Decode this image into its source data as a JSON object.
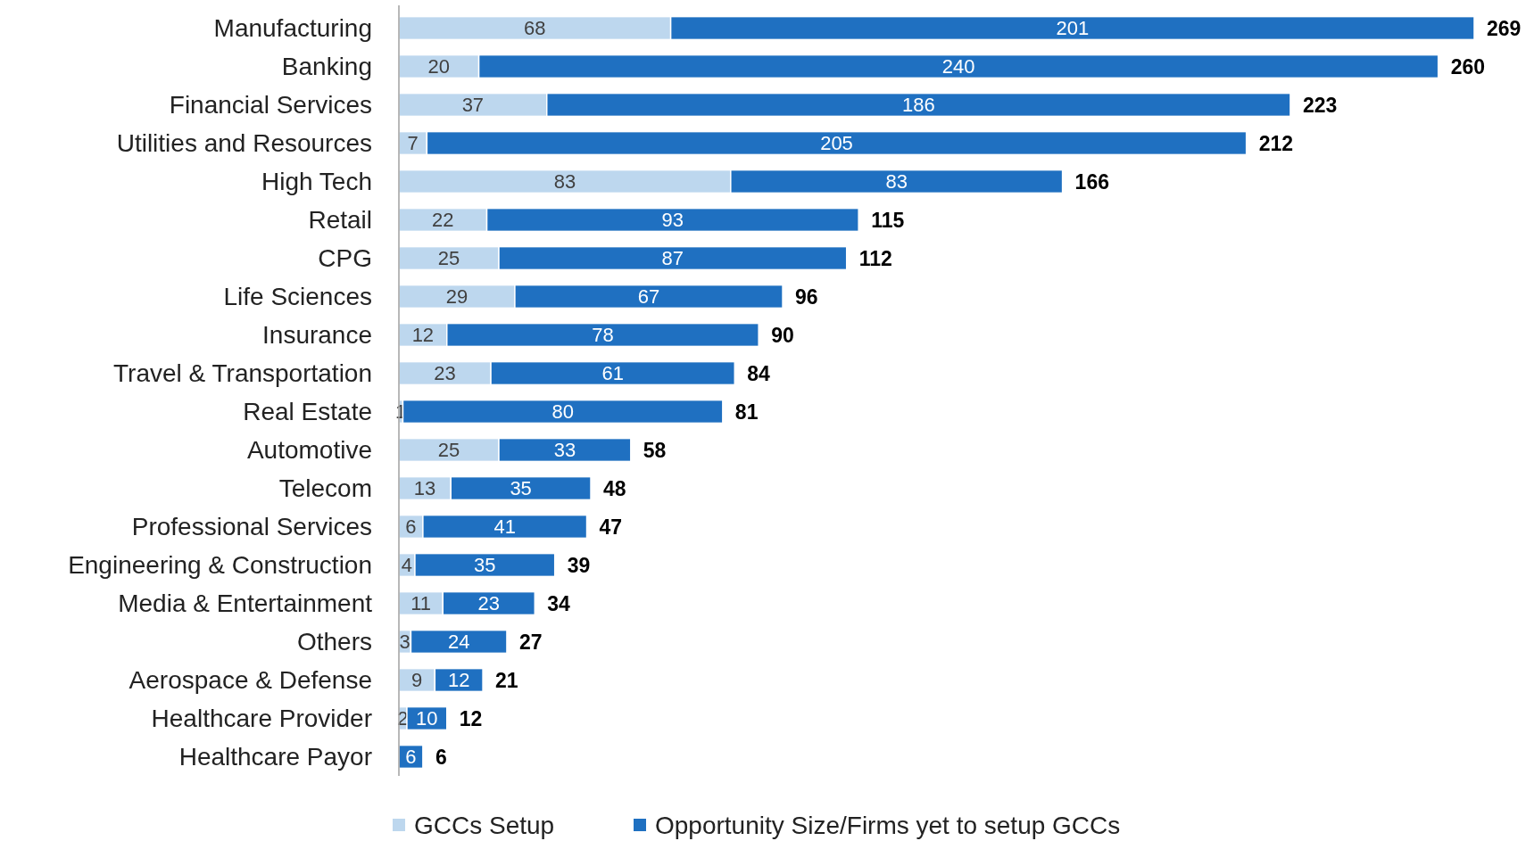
{
  "chart_data": {
    "type": "bar",
    "orientation": "horizontal",
    "stacked": true,
    "categories": [
      "Manufacturing",
      "Banking",
      "Financial Services",
      "Utilities and Resources",
      "High Tech",
      "Retail",
      "CPG",
      "Life Sciences",
      "Insurance",
      "Travel & Transportation",
      "Real Estate",
      "Automotive",
      "Telecom",
      "Professional Services",
      "Engineering & Construction",
      "Media & Entertainment",
      "Others",
      "Aerospace & Defense",
      "Healthcare Provider",
      "Healthcare Payor"
    ],
    "series": [
      {
        "name": "GCCs Setup",
        "color": "#bdd7ee",
        "values": [
          68,
          20,
          37,
          7,
          83,
          22,
          25,
          29,
          12,
          23,
          1,
          25,
          13,
          6,
          4,
          11,
          3,
          9,
          2,
          null
        ]
      },
      {
        "name": "Opportunity Size/Firms yet to setup GCCs",
        "color": "#1f70c1",
        "values": [
          201,
          240,
          186,
          205,
          83,
          93,
          87,
          67,
          78,
          61,
          80,
          33,
          35,
          41,
          35,
          23,
          24,
          12,
          10,
          6
        ]
      }
    ],
    "data_labels": true,
    "totals": [
      "269",
      "260",
      "223",
      "212",
      "166",
      "115",
      "112",
      "96",
      "90",
      "84",
      "81",
      "58",
      "48",
      "47",
      "39",
      "34",
      "27",
      "21",
      "12",
      "6"
    ],
    "legend": "bottom"
  }
}
